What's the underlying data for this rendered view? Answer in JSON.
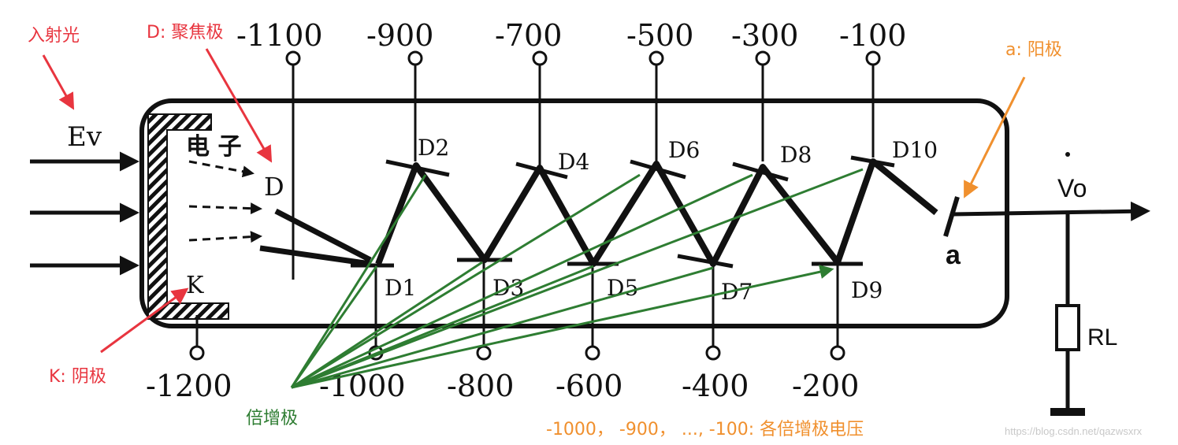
{
  "colors": {
    "line": "#111111",
    "annotation_red": "#e8353f",
    "annotation_orange": "#f0902e",
    "annotation_green": "#2e7d32",
    "watermark": "#c8c8c8"
  },
  "annotations": {
    "incident_light": "入射光",
    "focusing_electrode": "D: 聚焦极",
    "anode": "a: 阳极",
    "cathode": "K: 阴极",
    "dynodes": "倍增极",
    "voltage_note": "-1000， -900， ..., -100: 各倍增极电压"
  },
  "labels": {
    "ev": "Ev",
    "electron": "电 子",
    "focus": "D",
    "cathode": "K",
    "anode": "a",
    "vo": "Vo",
    "rl": "RL",
    "d1": "D1",
    "d2": "D2",
    "d3": "D3",
    "d4": "D4",
    "d5": "D5",
    "d6": "D6",
    "d7": "D7",
    "d8": "D8",
    "d9": "D9",
    "d10": "D10"
  },
  "top_voltages": [
    "-1100",
    "-900",
    "-700",
    "-500",
    "-300",
    "-100"
  ],
  "bottom_voltages": [
    "-1200",
    "-1000",
    "-800",
    "-600",
    "-400",
    "-200"
  ],
  "watermark": "https://blog.csdn.net/qazwsxrx"
}
